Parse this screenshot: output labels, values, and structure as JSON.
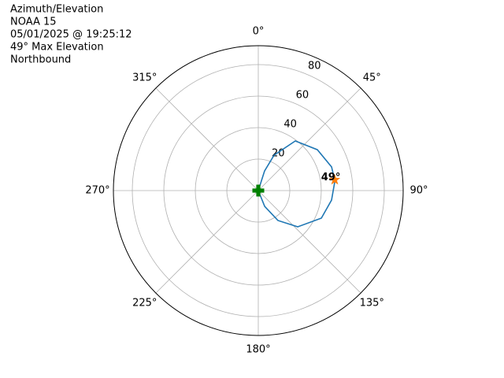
{
  "chart_data": {
    "type": "polar",
    "title": [
      "Azimuth/Elevation",
      "NOAA 15",
      "05/01/2025 @ 19:25:12",
      "49° Max Elevation",
      "Northbound"
    ],
    "theta_zero": "N",
    "theta_direction": "clockwise",
    "rlim": [
      0,
      92
    ],
    "rticks": [
      20,
      40,
      60,
      80
    ],
    "thetaticks": [
      {
        "value": 0,
        "label": "0°"
      },
      {
        "value": 45,
        "label": "45°"
      },
      {
        "value": 90,
        "label": "90°"
      },
      {
        "value": 135,
        "label": "135°"
      },
      {
        "value": 180,
        "label": "180°"
      },
      {
        "value": 225,
        "label": "225°"
      },
      {
        "value": 270,
        "label": "270°"
      },
      {
        "value": 315,
        "label": "315°"
      }
    ],
    "grid": true,
    "series": [
      {
        "color": "#1f77b4",
        "theta": [
          0,
          17.7,
          24,
          36.7,
          55.3,
          72.1,
          82.9,
          97.4,
          113.6,
          132.6,
          146.7,
          158,
          0
        ],
        "r": [
          0,
          13.1,
          24.6,
          39.3,
          45.6,
          48.9,
          49,
          46.9,
          43.7,
          34,
          22.7,
          10.8,
          0
        ]
      }
    ],
    "markers": [
      {
        "theta": 0,
        "r": 0,
        "color": "#008000",
        "shape": "plus"
      },
      {
        "theta": 82,
        "r": 49,
        "color": "#ff7f0e",
        "shape": "star",
        "label": "49°"
      }
    ]
  }
}
